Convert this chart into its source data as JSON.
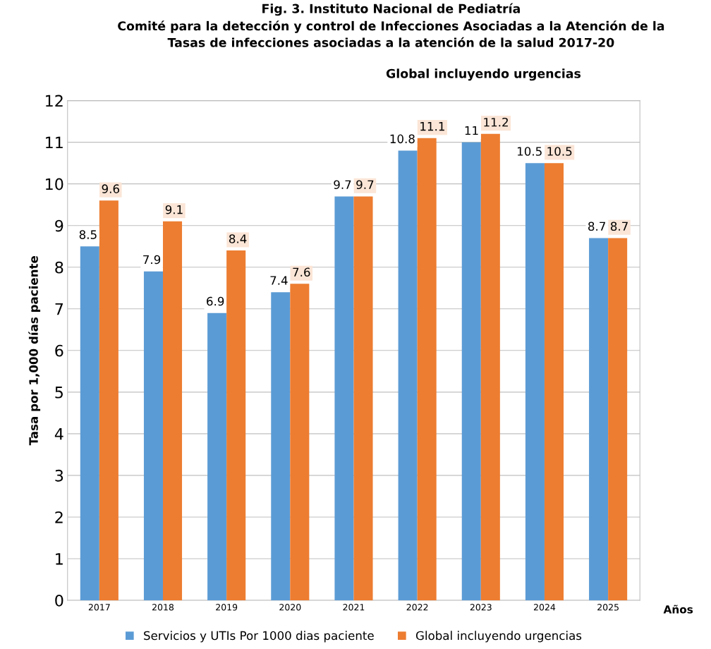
{
  "chart_data": {
    "type": "bar",
    "title": "Fig. 3. Instituto Nacional de Pediatría\nComité para la detección y control de Infecciones Asociadas a la Atención de la\nTasas de infecciones asociadas a la atención de la salud 2017-20",
    "subtitle": "Global incluyendo urgencias",
    "xlabel": "Años",
    "ylabel": "Tasa por 1,000 días paciente",
    "categories": [
      "2017",
      "2018",
      "2019",
      "2020",
      "2021",
      "2022",
      "2023",
      "2024",
      "2025"
    ],
    "series": [
      {
        "name": "Servicios y UTIs Por 1000 dias paciente",
        "color": "#5b9bd5",
        "values": [
          8.5,
          7.9,
          6.9,
          7.4,
          9.7,
          10.8,
          11,
          10.5,
          8.7
        ]
      },
      {
        "name": "Global incluyendo urgencias",
        "color": "#ed7d31",
        "values": [
          9.6,
          9.1,
          8.4,
          7.6,
          9.7,
          11.1,
          11.2,
          10.5,
          8.7
        ]
      }
    ],
    "ylim": [
      0,
      12
    ],
    "yticks": [
      0,
      1,
      2,
      3,
      4,
      5,
      6,
      7,
      8,
      9,
      10,
      11,
      12
    ],
    "grid": "y",
    "legend": "bottom",
    "data_labels": true
  }
}
